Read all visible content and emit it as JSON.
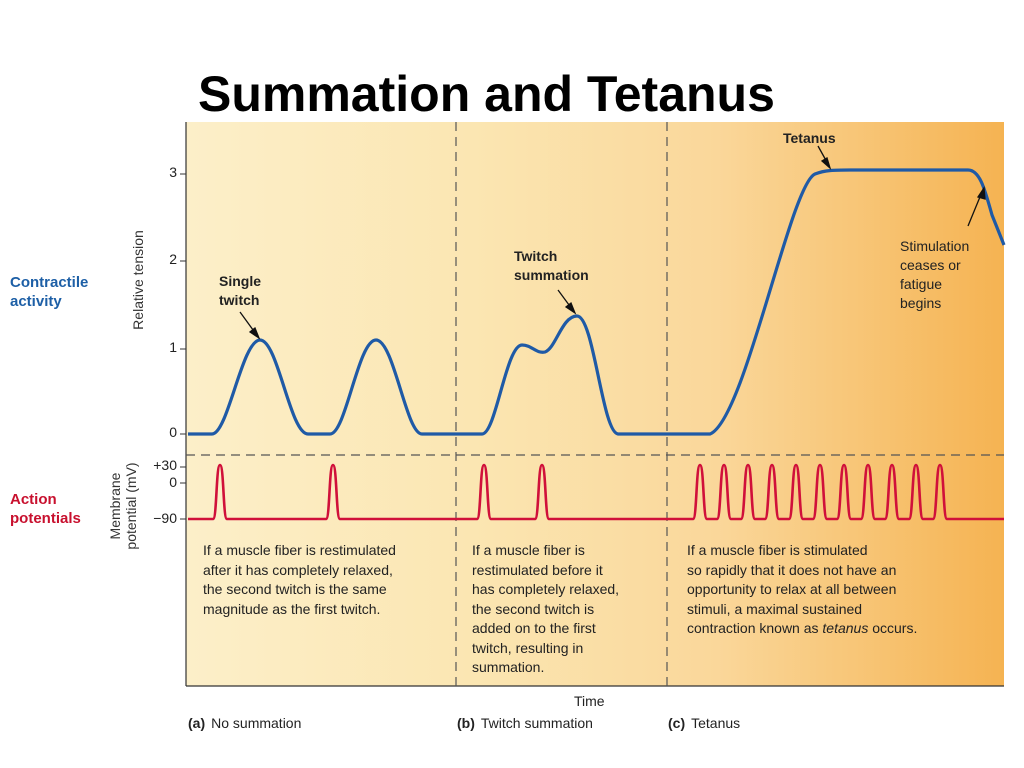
{
  "title": "Summation and Tetanus",
  "row_labels": {
    "contractile": "Contractile\nactivity",
    "action": "Action\npotentials"
  },
  "axes": {
    "tension_label": "Relative tension",
    "membrane_label": "Membrane\npotential (mV)",
    "tension_ticks": [
      "3",
      "2",
      "1",
      "0"
    ],
    "membrane_ticks": [
      "+30",
      "0",
      "−90"
    ],
    "x_label": "Time"
  },
  "callouts": {
    "single_twitch": "Single\ntwitch",
    "twitch_summation": "Twitch\nsummation",
    "tetanus": "Tetanus",
    "stimulation_ceases": "Stimulation\nceases or\nfatigue\nbegins"
  },
  "notes": {
    "a": "If a muscle fiber is restimulated\nafter it has completely relaxed,\nthe second twitch is the same\nmagnitude as the first twitch.",
    "b": "If a muscle fiber is\nrestimulated before it\nhas completely relaxed,\nthe second twitch is\nadded on to the first\ntwitch, resulting in\nsummation.",
    "c_before": "If a muscle fiber is stimulated\nso rapidly that it does not have an\nopportunity to relax at all between\nstimuli, a maximal sustained\ncontraction known as ",
    "c_em": "tetanus",
    "c_after": " occurs."
  },
  "captions": [
    {
      "letter": "(a)",
      "text": "No summation"
    },
    {
      "letter": "(b)",
      "text": "Twitch summation"
    },
    {
      "letter": "(c)",
      "text": "Tetanus"
    }
  ],
  "colors": {
    "tension_curve": "#1f5aa6",
    "action_potential": "#d0103a",
    "label_blue": "#1d5fa6",
    "label_red": "#c8102e"
  }
}
